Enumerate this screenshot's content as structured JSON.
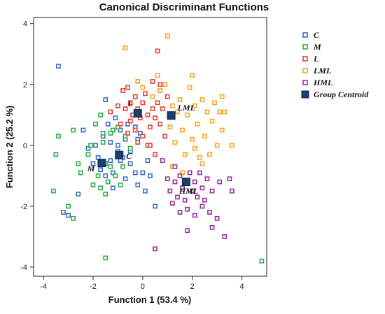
{
  "chart_data": {
    "type": "scatter",
    "title": "Canonical Discriminant Functions",
    "xlabel": "Function 1 (53.4 %)",
    "ylabel": "Function 2 (25.2 %)",
    "xlim": [
      -4.4,
      5.0
    ],
    "ylim": [
      -4.3,
      4.2
    ],
    "xticks": [
      -4,
      -2,
      0,
      2,
      4
    ],
    "yticks": [
      -4,
      -2,
      0,
      2,
      4
    ],
    "grid": false,
    "legend_position": "right",
    "series": [
      {
        "name": "C",
        "color": "#3a6fc4",
        "points": [
          [
            -3.4,
            2.6
          ],
          [
            -3.2,
            -2.2
          ],
          [
            -3.0,
            -2.3
          ],
          [
            -2.6,
            -1.6
          ],
          [
            -2.4,
            0.5
          ],
          [
            -2.2,
            -0.1
          ],
          [
            -2.0,
            -0.6
          ],
          [
            -1.9,
            0.0
          ],
          [
            -1.8,
            -0.4
          ],
          [
            -1.7,
            -0.8
          ],
          [
            -1.6,
            0.3
          ],
          [
            -1.5,
            -1.0
          ],
          [
            -1.5,
            1.5
          ],
          [
            -1.4,
            0.7
          ],
          [
            -1.3,
            -0.5
          ],
          [
            -1.3,
            0.1
          ],
          [
            -1.2,
            -0.9
          ],
          [
            -1.1,
            0.9
          ],
          [
            -1.0,
            0.0
          ],
          [
            -1.0,
            -0.2
          ],
          [
            -0.9,
            0.5
          ],
          [
            -0.8,
            -0.4
          ],
          [
            -0.7,
            -1.1
          ],
          [
            -0.6,
            0.7
          ],
          [
            -0.5,
            -0.2
          ],
          [
            -0.5,
            -0.6
          ],
          [
            -0.4,
            1.0
          ],
          [
            -0.3,
            -0.9
          ],
          [
            -0.2,
            0.2
          ],
          [
            -0.2,
            -1.3
          ],
          [
            -0.1,
            0.4
          ],
          [
            0.0,
            -0.9
          ],
          [
            0.1,
            -1.5
          ],
          [
            0.2,
            -0.5
          ],
          [
            0.3,
            -1.0
          ],
          [
            -0.7,
            0.2
          ],
          [
            -1.2,
            -1.4
          ],
          [
            0.5,
            -2.0
          ],
          [
            -0.3,
            0.6
          ],
          [
            -0.9,
            -0.5
          ]
        ]
      },
      {
        "name": "M",
        "color": "#2bb04a",
        "points": [
          [
            -3.6,
            -1.5
          ],
          [
            -3.5,
            -0.3
          ],
          [
            -3.4,
            0.3
          ],
          [
            -3.0,
            -2.0
          ],
          [
            -2.8,
            -2.4
          ],
          [
            -2.8,
            0.5
          ],
          [
            -2.6,
            -0.6
          ],
          [
            -2.5,
            -0.9
          ],
          [
            -2.2,
            -0.3
          ],
          [
            -2.1,
            0.0
          ],
          [
            -2.0,
            -1.3
          ],
          [
            -1.9,
            0.7
          ],
          [
            -1.8,
            -1.0
          ],
          [
            -1.7,
            -1.4
          ],
          [
            -1.7,
            1.0
          ],
          [
            -1.6,
            0.1
          ],
          [
            -1.5,
            -0.6
          ],
          [
            -1.5,
            -1.6
          ],
          [
            -1.4,
            -1.2
          ],
          [
            -1.3,
            -0.7
          ],
          [
            -1.2,
            0.5
          ],
          [
            -1.1,
            -1.0
          ],
          [
            -0.9,
            -0.3
          ],
          [
            -0.9,
            -1.3
          ],
          [
            -0.8,
            -0.7
          ],
          [
            -0.7,
            0.3
          ],
          [
            -0.5,
            -0.1
          ],
          [
            -1.5,
            -3.7
          ],
          [
            -1.6,
            0.4
          ],
          [
            -1.3,
            0.4
          ],
          [
            4.8,
            -3.8
          ],
          [
            -1.0,
            0.6
          ]
        ]
      },
      {
        "name": "L",
        "color": "#e8403a",
        "points": [
          [
            -1.3,
            1.1
          ],
          [
            -1.0,
            1.3
          ],
          [
            -0.9,
            0.7
          ],
          [
            -0.8,
            1.8
          ],
          [
            -0.7,
            1.2
          ],
          [
            -0.6,
            0.4
          ],
          [
            -0.5,
            1.4
          ],
          [
            -0.5,
            0.8
          ],
          [
            -0.4,
            1.0
          ],
          [
            -0.3,
            1.6
          ],
          [
            -0.3,
            0.5
          ],
          [
            -0.2,
            1.2
          ],
          [
            -0.1,
            0.9
          ],
          [
            0.0,
            1.4
          ],
          [
            0.0,
            0.3
          ],
          [
            0.1,
            1.7
          ],
          [
            0.2,
            1.0
          ],
          [
            0.2,
            0.0
          ],
          [
            0.3,
            0.6
          ],
          [
            0.4,
            1.2
          ],
          [
            0.5,
            0.9
          ],
          [
            0.5,
            -0.3
          ],
          [
            0.6,
            1.4
          ],
          [
            0.7,
            0.7
          ],
          [
            0.7,
            2.0
          ],
          [
            0.8,
            1.2
          ],
          [
            0.9,
            0.3
          ],
          [
            1.0,
            1.6
          ],
          [
            0.6,
            3.1
          ],
          [
            -0.6,
            1.9
          ],
          [
            0.3,
            0.0
          ],
          [
            -0.2,
            0.1
          ],
          [
            0.4,
            2.1
          ]
        ]
      },
      {
        "name": "LML",
        "color": "#f5a623",
        "points": [
          [
            -0.7,
            3.2
          ],
          [
            -0.2,
            2.1
          ],
          [
            0.0,
            1.9
          ],
          [
            0.4,
            1.6
          ],
          [
            0.6,
            2.3
          ],
          [
            0.7,
            1.8
          ],
          [
            0.9,
            2.0
          ],
          [
            1.1,
            0.6
          ],
          [
            1.2,
            1.3
          ],
          [
            1.2,
            -0.7
          ],
          [
            1.3,
            0.1
          ],
          [
            1.4,
            1.1
          ],
          [
            1.5,
            1.5
          ],
          [
            1.6,
            0.5
          ],
          [
            1.7,
            -0.3
          ],
          [
            1.8,
            1.0
          ],
          [
            1.9,
            1.9
          ],
          [
            2.0,
            0.2
          ],
          [
            2.1,
            -0.1
          ],
          [
            2.1,
            1.3
          ],
          [
            2.2,
            0.7
          ],
          [
            2.3,
            -0.4
          ],
          [
            2.4,
            1.5
          ],
          [
            2.5,
            0.3
          ],
          [
            2.6,
            1.1
          ],
          [
            2.7,
            -0.3
          ],
          [
            2.8,
            0.8
          ],
          [
            2.9,
            1.4
          ],
          [
            3.0,
            0.0
          ],
          [
            3.1,
            1.1
          ],
          [
            3.2,
            0.5
          ],
          [
            3.2,
            1.6
          ],
          [
            3.3,
            1.1
          ],
          [
            3.6,
            0.0
          ],
          [
            2.0,
            2.3
          ],
          [
            1.0,
            3.6
          ],
          [
            2.4,
            -0.6
          ],
          [
            1.6,
            -0.9
          ]
        ]
      },
      {
        "name": "HML",
        "color": "#9b2fa0",
        "points": [
          [
            0.8,
            -0.5
          ],
          [
            1.0,
            -1.1
          ],
          [
            1.1,
            -1.5
          ],
          [
            1.2,
            -1.9
          ],
          [
            1.3,
            -1.2
          ],
          [
            1.4,
            -1.7
          ],
          [
            1.5,
            -1.0
          ],
          [
            1.5,
            -2.2
          ],
          [
            1.6,
            -1.4
          ],
          [
            1.7,
            -1.8
          ],
          [
            1.8,
            -2.1
          ],
          [
            1.9,
            -0.9
          ],
          [
            2.0,
            -1.5
          ],
          [
            2.1,
            -1.2
          ],
          [
            2.1,
            -2.3
          ],
          [
            2.2,
            -1.7
          ],
          [
            2.3,
            -0.9
          ],
          [
            2.4,
            -2.0
          ],
          [
            2.4,
            -1.4
          ],
          [
            2.5,
            -1.8
          ],
          [
            2.6,
            -1.1
          ],
          [
            2.7,
            -2.2
          ],
          [
            2.8,
            -1.5
          ],
          [
            3.0,
            -2.4
          ],
          [
            3.1,
            -1.2
          ],
          [
            3.3,
            -3.0
          ],
          [
            3.5,
            -1.1
          ],
          [
            3.6,
            -1.5
          ],
          [
            1.8,
            -2.8
          ],
          [
            0.5,
            -3.4
          ],
          [
            2.8,
            -2.7
          ],
          [
            1.3,
            -0.7
          ]
        ]
      }
    ],
    "centroids": {
      "name": "Group Centroid",
      "color": "#1a3f6b",
      "points": [
        {
          "label": "C",
          "x": -0.95,
          "y": -0.32
        },
        {
          "label": "M",
          "x": -1.65,
          "y": -0.58
        },
        {
          "label": "L",
          "x": -0.2,
          "y": 1.05
        },
        {
          "label": "LML",
          "x": 1.15,
          "y": 0.98
        },
        {
          "label": "HML",
          "x": 1.75,
          "y": -1.2
        }
      ]
    }
  }
}
